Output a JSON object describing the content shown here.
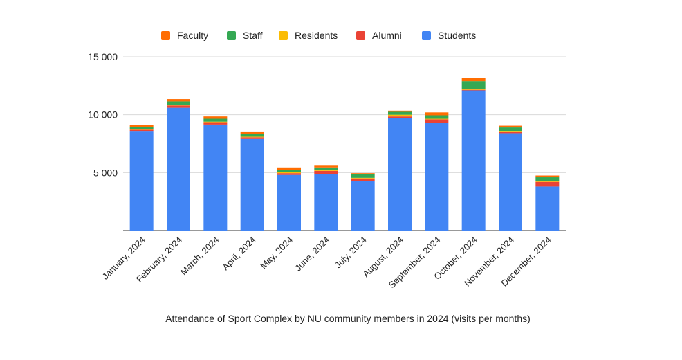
{
  "chart_data": {
    "type": "bar",
    "stacked": true,
    "title": "Attendance of Sport Complex by NU community members in 2024 (visits per months)",
    "xlabel": "",
    "ylabel": "",
    "ylim": [
      0,
      15000
    ],
    "yticks": [
      {
        "value": 5000,
        "label": "5 000"
      },
      {
        "value": 10000,
        "label": "10 000"
      },
      {
        "value": 15000,
        "label": "15 000"
      }
    ],
    "grid": true,
    "legend_position": "top",
    "categories": [
      "January, 2024",
      "February, 2024",
      "March, 2024",
      "April, 2024",
      "May, 2024",
      "June, 2024",
      "July, 2024",
      "August, 2024",
      "September, 2024",
      "October, 2024",
      "November, 2024",
      "December, 2024"
    ],
    "series": [
      {
        "name": "Students",
        "color": "#4285f4",
        "values": [
          8600,
          10600,
          9150,
          7900,
          4800,
          4900,
          4250,
          9700,
          9300,
          12100,
          8400,
          3800
        ]
      },
      {
        "name": "Alumni",
        "color": "#ea4335",
        "values": [
          100,
          200,
          200,
          150,
          150,
          250,
          250,
          150,
          300,
          50,
          150,
          400
        ]
      },
      {
        "name": "Residents",
        "color": "#fbbc04",
        "values": [
          50,
          50,
          50,
          50,
          100,
          50,
          50,
          150,
          50,
          100,
          50,
          50
        ]
      },
      {
        "name": "Staff",
        "color": "#34a853",
        "values": [
          200,
          300,
          250,
          250,
          200,
          250,
          300,
          250,
          300,
          650,
          300,
          350
        ]
      },
      {
        "name": "Faculty",
        "color": "#ff6d01",
        "values": [
          150,
          200,
          200,
          200,
          200,
          150,
          100,
          100,
          250,
          300,
          150,
          150
        ]
      }
    ],
    "legend_order": [
      "Faculty",
      "Staff",
      "Residents",
      "Alumni",
      "Students"
    ]
  }
}
